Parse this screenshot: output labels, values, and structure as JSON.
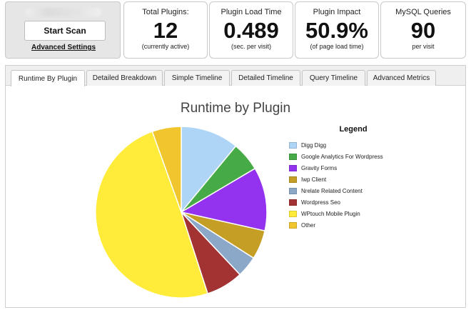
{
  "scan": {
    "start_label": "Start Scan",
    "advanced_label": "Advanced Settings"
  },
  "stats": [
    {
      "label": "Total Plugins:",
      "value": "12",
      "sub": "(currently active)"
    },
    {
      "label": "Plugin Load Time",
      "value": "0.489",
      "sub": "(sec. per visit)"
    },
    {
      "label": "Plugin Impact",
      "value": "50.9%",
      "sub": "(of page load time)"
    },
    {
      "label": "MySQL Queries",
      "value": "90",
      "sub": "per visit"
    }
  ],
  "tabs": [
    {
      "label": "Runtime By Plugin",
      "active": true
    },
    {
      "label": "Detailed Breakdown",
      "active": false
    },
    {
      "label": "Simple Timeline",
      "active": false
    },
    {
      "label": "Detailed Timeline",
      "active": false
    },
    {
      "label": "Query Timeline",
      "active": false
    },
    {
      "label": "Advanced Metrics",
      "active": false
    }
  ],
  "chart_data": {
    "type": "pie",
    "title": "Runtime by Plugin",
    "legend_title": "Legend",
    "legend_position": "right",
    "unit": "percent",
    "slices": [
      {
        "name": "Digg Digg",
        "value": 11.0,
        "color": "#aed4f6"
      },
      {
        "name": "Google Analytics For Wordpress",
        "value": 5.5,
        "color": "#46ab46"
      },
      {
        "name": "Gravity Forms",
        "value": 12.0,
        "color": "#9333f0"
      },
      {
        "name": "Iwp Client",
        "value": 5.5,
        "color": "#c59f25"
      },
      {
        "name": "Nrelate Related Content",
        "value": 4.0,
        "color": "#8ca8c8"
      },
      {
        "name": "Wordpress Seo",
        "value": 7.0,
        "color": "#a33232"
      },
      {
        "name": "WPtouch Mobile Plugin",
        "value": 49.5,
        "color": "#ffec3a"
      },
      {
        "name": "Other",
        "value": 5.5,
        "color": "#f0c52e"
      }
    ]
  }
}
